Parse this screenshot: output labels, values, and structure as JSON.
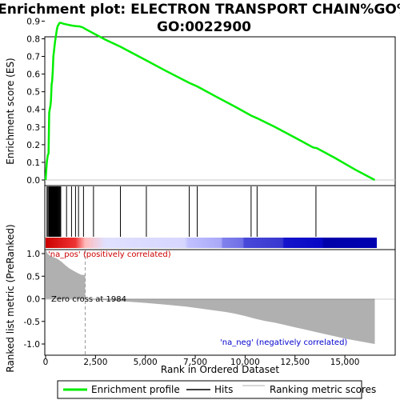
{
  "chart_data": {
    "type": "line",
    "title_line1": "Enrichment plot: ELECTRON TRANSPORT CHAIN%GO%",
    "title_line2": "GO:0022900",
    "ylabel_top": "Enrichment score (ES)",
    "ylabel_bottom": "Ranked list metric (PreRanked)",
    "xlabel": "Rank in Ordered Dataset",
    "xlim": [
      0,
      16600
    ],
    "es_ylim": [
      -0.05,
      0.93
    ],
    "metric_ylim": [
      -1.05,
      1.1
    ],
    "x_ticks": [
      0,
      2500,
      5000,
      7500,
      10000,
      12500,
      15000
    ],
    "x_tick_labels": [
      "0",
      "2,500",
      "5,000",
      "7,500",
      "10,000",
      "12,500",
      "15,000"
    ],
    "es_ticks": [
      0.0,
      0.1,
      0.2,
      0.3,
      0.4,
      0.5,
      0.6,
      0.7,
      0.8,
      0.9
    ],
    "es_tick_labels": [
      "0.0",
      "0.1",
      "0.2",
      "0.3",
      "0.4",
      "0.5",
      "0.6",
      "0.7",
      "0.8",
      "0.9"
    ],
    "metric_ticks": [
      1.0,
      0.5,
      0.0,
      -0.5,
      -1.0
    ],
    "metric_tick_labels": [
      "1.0",
      "0.5",
      "0.0",
      "-0.5",
      "-1.0"
    ],
    "series": [
      {
        "name": "Enrichment profile",
        "color": "#00ee00",
        "x": [
          0,
          60,
          110,
          150,
          180,
          210,
          240,
          270,
          300,
          330,
          360,
          390,
          420,
          450,
          480,
          520,
          560,
          600,
          650,
          700,
          760,
          900,
          1100,
          1300,
          1500,
          1700,
          1850,
          2000,
          2500,
          3000,
          3750,
          5000,
          6000,
          7200,
          7600,
          8500,
          9500,
          10300,
          10600,
          11500,
          12500,
          13400,
          13600,
          14500,
          15500,
          16500
        ],
        "values": [
          0.0,
          0.1,
          0.14,
          0.15,
          0.38,
          0.4,
          0.42,
          0.45,
          0.54,
          0.56,
          0.62,
          0.7,
          0.73,
          0.76,
          0.79,
          0.82,
          0.85,
          0.87,
          0.88,
          0.89,
          0.89,
          0.885,
          0.88,
          0.875,
          0.872,
          0.87,
          0.865,
          0.855,
          0.825,
          0.795,
          0.755,
          0.68,
          0.62,
          0.55,
          0.53,
          0.475,
          0.415,
          0.365,
          0.35,
          0.3,
          0.24,
          0.185,
          0.18,
          0.125,
          0.06,
          0.0
        ]
      },
      {
        "name": "Ranking metric scores",
        "color": "#b0b0b0",
        "x": [
          0,
          100,
          200,
          400,
          600,
          800,
          1000,
          1200,
          1400,
          1600,
          1800,
          1984,
          2200,
          2600,
          3000,
          4000,
          5000,
          6000,
          7000,
          8000,
          9000,
          9500,
          10000,
          10500,
          11000,
          11500,
          12000,
          12500,
          13000,
          13500,
          14000,
          14500,
          15000,
          15500,
          16000,
          16500
        ],
        "values": [
          1.1,
          1.0,
          0.96,
          0.92,
          0.88,
          0.82,
          0.74,
          0.67,
          0.62,
          0.57,
          0.53,
          0.0,
          -0.01,
          -0.02,
          -0.03,
          -0.06,
          -0.09,
          -0.13,
          -0.17,
          -0.23,
          -0.29,
          -0.33,
          -0.38,
          -0.44,
          -0.49,
          -0.53,
          -0.58,
          -0.63,
          -0.68,
          -0.73,
          -0.78,
          -0.83,
          -0.88,
          -0.92,
          -0.96,
          -1.0
        ]
      }
    ],
    "hits": [
      70,
      120,
      170,
      200,
      240,
      270,
      300,
      320,
      340,
      360,
      380,
      400,
      420,
      440,
      460,
      480,
      500,
      520,
      540,
      560,
      580,
      610,
      640,
      680,
      720,
      760,
      1050,
      1300,
      1500,
      1650,
      1900,
      2400,
      3750,
      5050,
      7200,
      7600,
      10300,
      10600,
      13550
    ],
    "zero_cross": 1984,
    "annotations": {
      "pos": "'na_pos' (positively correlated)",
      "neg": "'na_neg' (negatively correlated)",
      "zero": "Zero cross at 1984"
    },
    "colors": {
      "es_line": "#00ee00",
      "hits": "#000000",
      "metric_fill": "#b0b0b0",
      "pos_text": "#cc0000",
      "neg_text": "#0000cc",
      "gradient": [
        "#cc0000",
        "#ee6666",
        "#ffbbbb",
        "#e8e8ff",
        "#c8c8ff",
        "#9090f0",
        "#5050e0",
        "#2020d0",
        "#0000b8"
      ]
    },
    "legend": {
      "placement": "bottom",
      "items": [
        "Enrichment profile",
        "Hits",
        "Ranking metric scores"
      ]
    }
  }
}
